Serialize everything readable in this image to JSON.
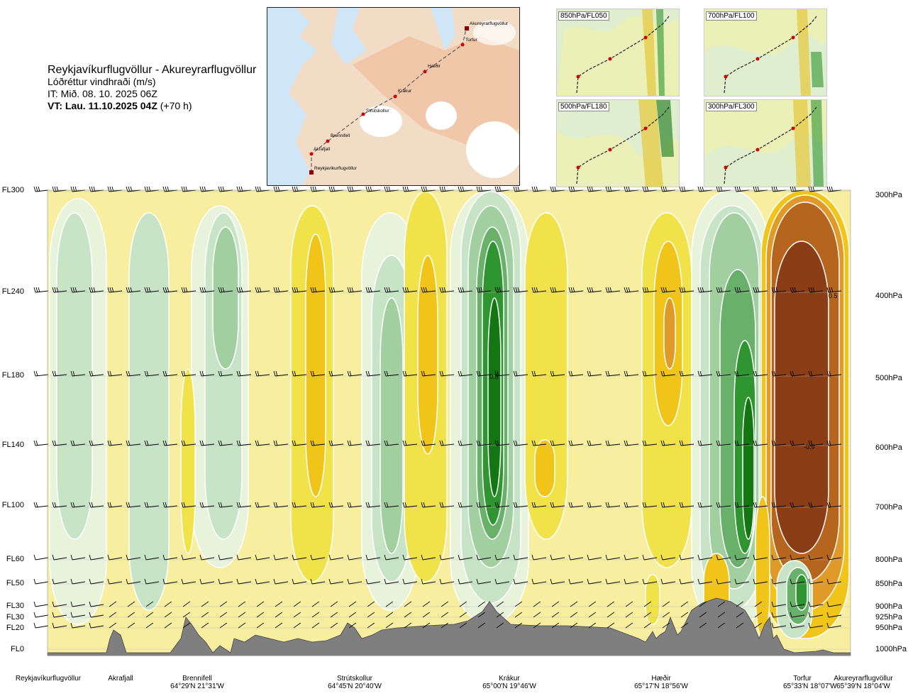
{
  "title": {
    "route": "Reykjavíkurflugvöllur - Akureyrarflugvöllur",
    "variable": "Lóðréttur vindhraði (m/s)",
    "issue_time": "IT: Mið. 08. 10. 2025 06Z",
    "valid_time_bold": "VT: Lau. 11.10.2025 04Z",
    "valid_offset": "(+70 h)"
  },
  "map": {
    "waypoints": [
      "Reykjavíkurflugvöllur",
      "Akrafjall",
      "Brennifell",
      "Strútskollur",
      "Krákur",
      "Hæðir",
      "Torfur",
      "Akureyrarflugvöllur"
    ],
    "colors": {
      "land": "#f2c9a6",
      "sea": "#cfe6f7",
      "route": "#444444",
      "point": "#d40000"
    }
  },
  "mini_maps": [
    {
      "label": "850hPa/FL050"
    },
    {
      "label": "700hPa/FL100"
    },
    {
      "label": "500hPa/FL180"
    },
    {
      "label": "300hPa/FL300"
    }
  ],
  "chart_data": {
    "type": "heatmap",
    "title": "Lóðréttur vindhraði (m/s)",
    "levels": [
      {
        "fl": "FL300",
        "hpa": "300hPa"
      },
      {
        "fl": "FL240",
        "hpa": "400hPa"
      },
      {
        "fl": "FL180",
        "hpa": "500hPa"
      },
      {
        "fl": "FL140",
        "hpa": "600hPa"
      },
      {
        "fl": "FL100",
        "hpa": "700hPa"
      },
      {
        "fl": "FL60",
        "hpa": "800hPa"
      },
      {
        "fl": "FL50",
        "hpa": "850hPa"
      },
      {
        "fl": "FL30",
        "hpa": "900hPa"
      },
      {
        "fl": "FL30",
        "hpa": "925hPa"
      },
      {
        "fl": "FL20",
        "hpa": "950hPa"
      },
      {
        "fl": "FL0",
        "hpa": "1000hPa"
      }
    ],
    "x_axis": [
      {
        "name": "Reykjavíkurflugvöllur",
        "coord": ""
      },
      {
        "name": "Akrafjall",
        "coord": ""
      },
      {
        "name": "Brennifell",
        "coord": "64°29'N 21°31'W"
      },
      {
        "name": "Strútskollur",
        "coord": "64°45'N 20°40'W"
      },
      {
        "name": "Krákur",
        "coord": "65°00'N 19°46'W"
      },
      {
        "name": "Hæðir",
        "coord": "65°17'N 18°56'W"
      },
      {
        "name": "Torfur",
        "coord": "65°33'N 18°07'W"
      },
      {
        "name": "Akureyrarflugvöllur",
        "coord": "65°39'N 18°04'W"
      }
    ],
    "annotations": [
      "0.5",
      "0.5",
      "-0.9"
    ],
    "colors": {
      "strong_down": "#8b3e16",
      "down3": "#b5651d",
      "down2": "#e09a28",
      "down1": "#f0c419",
      "weak_down": "#f2e24a",
      "near_zero_down": "#f7ee9f",
      "near_zero_up": "#e8f3dc",
      "weak_up": "#c7e5c6",
      "up1": "#a1cfa0",
      "up2": "#69b16b",
      "up3": "#2f9530",
      "strong_up": "#137613",
      "terrain": "#7f7f7f"
    }
  }
}
